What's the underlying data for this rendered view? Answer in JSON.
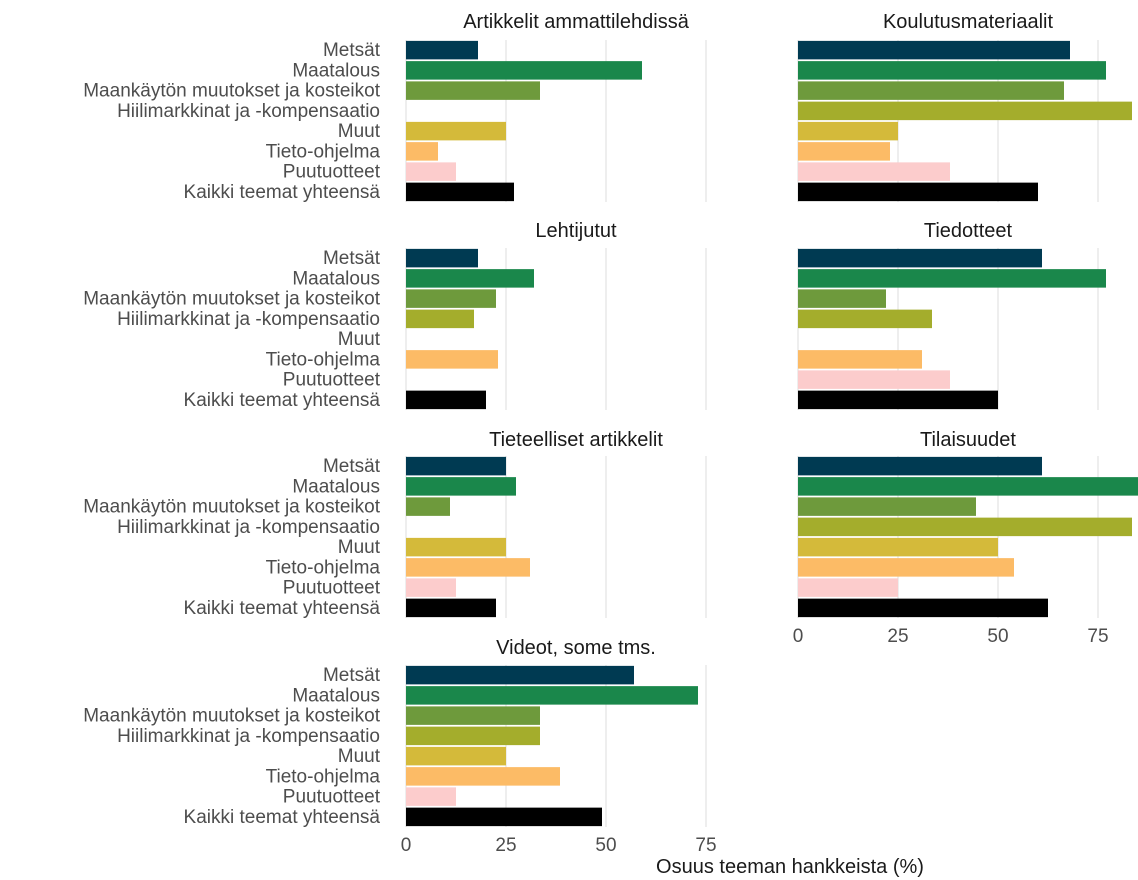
{
  "chart_data": {
    "type": "bar",
    "orientation": "horizontal",
    "xlabel": "Osuus teeman hankkeista (%)",
    "xlim": [
      0,
      85
    ],
    "xticks": [
      0,
      25,
      50,
      75
    ],
    "grid": true,
    "categories": [
      "Metsät",
      "Maatalous",
      "Maankäytön muutokset ja kosteikot",
      "Hiilimarkkinat ja -kompensaatio",
      "Muut",
      "Tieto-ohjelma",
      "Puutuotteet",
      "Kaikki teemat yhteensä"
    ],
    "colors": [
      "#003a52",
      "#1a874b",
      "#6e9a3c",
      "#a4ad2c",
      "#d4ba3a",
      "#fcbb66",
      "#fccccc",
      "#000000"
    ],
    "panels": [
      {
        "title": "Artikkelit ammattilehdissä",
        "values": [
          18,
          59,
          33.5,
          0,
          25,
          8,
          12.5,
          27
        ]
      },
      {
        "title": "Koulutusmateriaalit",
        "values": [
          68,
          77,
          66.5,
          83.5,
          25,
          23,
          38,
          60
        ]
      },
      {
        "title": "Lehtijutut",
        "values": [
          18,
          32,
          22.5,
          17,
          0,
          23,
          0,
          20
        ]
      },
      {
        "title": "Tiedotteet",
        "values": [
          61,
          77,
          22,
          33.5,
          0,
          31,
          38,
          50
        ]
      },
      {
        "title": "Tieteelliset artikkelit",
        "values": [
          25,
          27.5,
          11,
          0,
          25,
          31,
          12.5,
          22.5
        ]
      },
      {
        "title": "Tilaisuudet",
        "values": [
          61,
          85,
          44.5,
          83.5,
          50,
          54,
          25,
          62.5
        ]
      },
      {
        "title": "Videot, some tms.",
        "values": [
          57,
          73,
          33.5,
          33.5,
          25,
          38.5,
          12.5,
          49
        ]
      }
    ]
  }
}
